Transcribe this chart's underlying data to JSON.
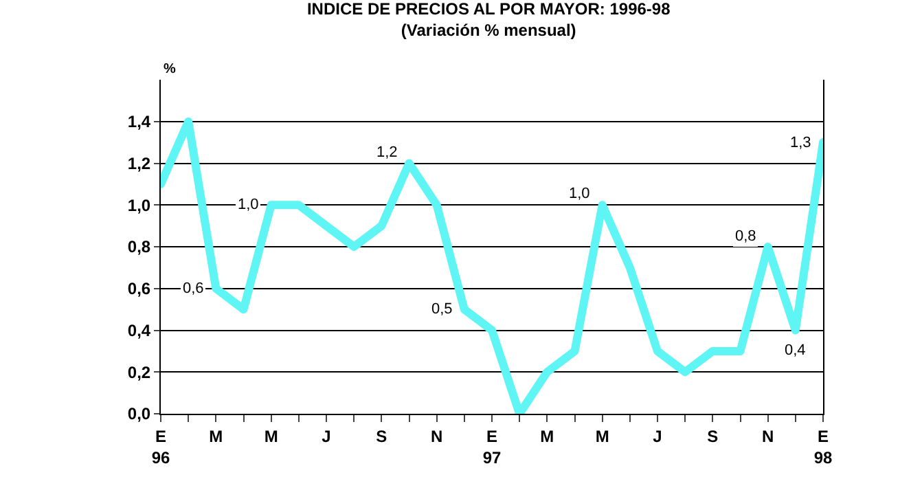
{
  "chart_data": {
    "type": "line",
    "title": "INDICE DE PRECIOS AL POR MAYOR: 1996-98",
    "subtitle": "(Variación % mensual)",
    "ylabel": "%",
    "categories": [
      "E\n96",
      null,
      "M",
      null,
      "M",
      null,
      "J",
      null,
      "S",
      null,
      "N",
      null,
      "E\n97",
      null,
      "M",
      null,
      "M",
      null,
      "J",
      null,
      "S",
      null,
      "N",
      null,
      "E\n98"
    ],
    "series": [
      {
        "color": "#5ff5f5",
        "values": [
          1.1,
          1.4,
          0.6,
          0.5,
          1.0,
          1.0,
          0.9,
          0.8,
          0.9,
          1.2,
          1.0,
          0.5,
          0.4,
          0.0,
          0.2,
          0.3,
          1.0,
          0.7,
          0.3,
          0.2,
          0.3,
          0.3,
          0.8,
          0.4,
          1.3
        ],
        "value_labels": [
          null,
          null,
          "0,6",
          null,
          "1,0",
          null,
          null,
          null,
          null,
          "1,2",
          null,
          "0,5",
          null,
          null,
          null,
          null,
          "1,0",
          null,
          null,
          null,
          null,
          null,
          "0,8",
          "0,4",
          "1,3"
        ]
      }
    ],
    "ylim": [
      0,
      1.6
    ],
    "yticks": [
      {
        "value": 0,
        "label": "0,0"
      },
      {
        "value": 0.2,
        "label": "0,2"
      },
      {
        "value": 0.4,
        "label": "0,4"
      },
      {
        "value": 0.6,
        "label": "0,6"
      },
      {
        "value": 0.8,
        "label": "0,8"
      },
      {
        "value": 1.0,
        "label": "1,0"
      },
      {
        "value": 1.2,
        "label": "1,2"
      },
      {
        "value": 1.4,
        "label": "1,4"
      }
    ],
    "grid": "y",
    "marker": "none",
    "line_style": "solid"
  }
}
